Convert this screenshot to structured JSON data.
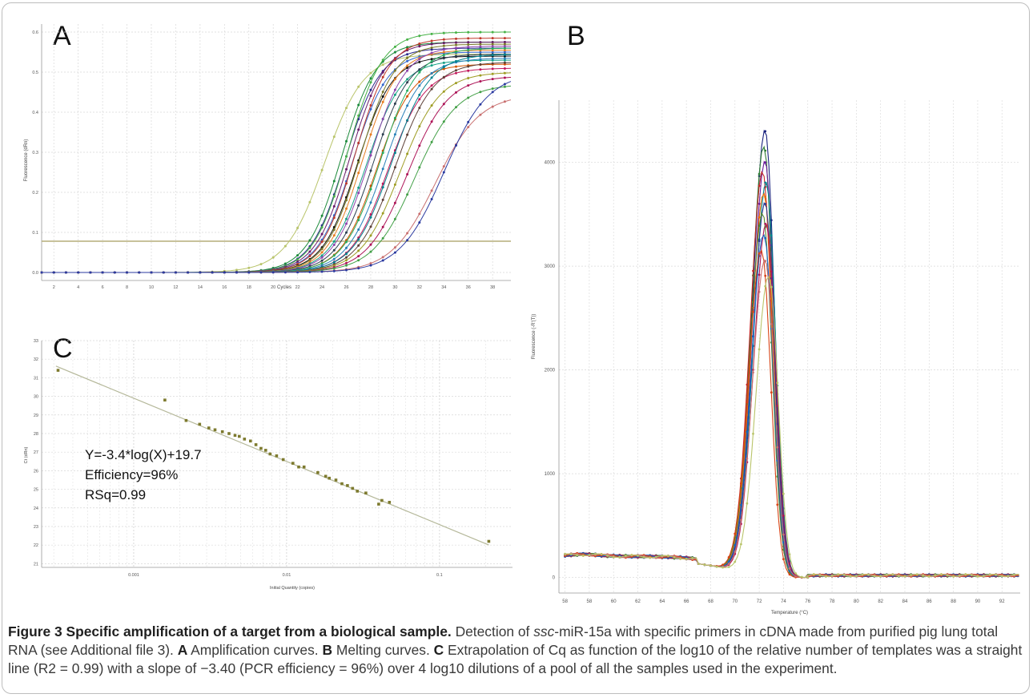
{
  "figure": {
    "panels": {
      "a": {
        "letter": "A",
        "xlabel": "Cycles",
        "ylabel": "Fluorescence (dRn)",
        "x_ticks": [
          "2",
          "4",
          "6",
          "8",
          "10",
          "12",
          "14",
          "16",
          "18",
          "20",
          "22",
          "24",
          "26",
          "28",
          "30",
          "32",
          "34",
          "36",
          "38"
        ],
        "y_ticks": [
          "0.0",
          "0.1",
          "0.2",
          "0.3",
          "0.4",
          "0.5",
          "0.6"
        ]
      },
      "b": {
        "letter": "B",
        "xlabel": "Temperature (°C)",
        "ylabel": "Fluorescence (-R'(T))",
        "x_ticks": [
          "58",
          "58",
          "60",
          "62",
          "64",
          "66",
          "68",
          "70",
          "72",
          "74",
          "76",
          "78",
          "80",
          "82",
          "84",
          "86",
          "88",
          "90",
          "92"
        ],
        "y_ticks": [
          "0",
          "1000",
          "2000",
          "3000",
          "4000"
        ]
      },
      "c": {
        "letter": "C",
        "xlabel": "Initial Quantity (copies)",
        "ylabel": "Ct (dRn)",
        "x_ticks": [
          "0.001",
          "0.01",
          "0.1"
        ],
        "y_ticks": [
          "21",
          "22",
          "23",
          "24",
          "25",
          "26",
          "27",
          "28",
          "29",
          "30",
          "31",
          "32",
          "33"
        ],
        "annotation": [
          "Y=-3.4*log(X)+19.7",
          "Efficiency=96%",
          "RSq=0.99"
        ]
      }
    },
    "caption": {
      "label": "Figure 3 Specific amplification of a target from a biological sample.",
      "text_1": " Detection of ",
      "italic": "ssc",
      "text_2": "-miR-15a with specific primers in cDNA made from purified pig lung total RNA (see Additional file 3). ",
      "a_label": "A",
      "a_text": " Amplification curves. ",
      "b_label": "B",
      "b_text": " Melting curves. ",
      "c_label": "C",
      "c_text": " Extrapolation of Cq as function of the log10 of the relative number of templates was a straight line (R2 = 0.99) with a slope of −3.40 (PCR efficiency = 96%) over 4 log10 dilutions of a pool of all the samples used in the experiment."
    }
  },
  "chart_data": [
    {
      "type": "line",
      "panel": "A",
      "xlabel": "Cycles",
      "ylabel": "Fluorescence (dRn)",
      "xlim": [
        1,
        39.5
      ],
      "ylim": [
        -0.02,
        0.62
      ],
      "threshold": 0.078,
      "series_params": [
        {
          "mid": 24.2,
          "k": 0.62,
          "top": 0.545,
          "color": "#b9c46a"
        },
        {
          "mid": 25.6,
          "k": 0.7,
          "top": 0.575,
          "color": "#1b8a3a"
        },
        {
          "mid": 25.9,
          "k": 0.7,
          "top": 0.56,
          "color": "#2a2a8c"
        },
        {
          "mid": 26.1,
          "k": 0.7,
          "top": 0.6,
          "color": "#47b247"
        },
        {
          "mid": 26.3,
          "k": 0.7,
          "top": 0.575,
          "color": "#6a1a6a"
        },
        {
          "mid": 26.5,
          "k": 0.7,
          "top": 0.55,
          "color": "#3366cc"
        },
        {
          "mid": 26.7,
          "k": 0.7,
          "top": 0.585,
          "color": "#c0392b"
        },
        {
          "mid": 26.9,
          "k": 0.7,
          "top": 0.54,
          "color": "#111111"
        },
        {
          "mid": 27.1,
          "k": 0.7,
          "top": 0.57,
          "color": "#7a7a2a"
        },
        {
          "mid": 27.3,
          "k": 0.7,
          "top": 0.555,
          "color": "#e67e22"
        },
        {
          "mid": 27.6,
          "k": 0.68,
          "top": 0.53,
          "color": "#16a085"
        },
        {
          "mid": 27.9,
          "k": 0.68,
          "top": 0.565,
          "color": "#8e44ad"
        },
        {
          "mid": 28.2,
          "k": 0.68,
          "top": 0.545,
          "color": "#2c3e50"
        },
        {
          "mid": 28.5,
          "k": 0.68,
          "top": 0.52,
          "color": "#d35400"
        },
        {
          "mid": 28.8,
          "k": 0.66,
          "top": 0.56,
          "color": "#27ae60"
        },
        {
          "mid": 29.1,
          "k": 0.66,
          "top": 0.535,
          "color": "#2980b9"
        },
        {
          "mid": 29.4,
          "k": 0.66,
          "top": 0.51,
          "color": "#c2185b"
        },
        {
          "mid": 29.7,
          "k": 0.64,
          "top": 0.545,
          "color": "#00838f"
        },
        {
          "mid": 30.0,
          "k": 0.64,
          "top": 0.525,
          "color": "#5d4037"
        },
        {
          "mid": 30.4,
          "k": 0.62,
          "top": 0.5,
          "color": "#9e9d24"
        },
        {
          "mid": 31.0,
          "k": 0.6,
          "top": 0.49,
          "color": "#ad1457"
        },
        {
          "mid": 31.6,
          "k": 0.58,
          "top": 0.47,
          "color": "#43a047"
        },
        {
          "mid": 33.3,
          "k": 0.55,
          "top": 0.445,
          "color": "#c97070"
        },
        {
          "mid": 34.0,
          "k": 0.55,
          "top": 0.5,
          "color": "#2b3aa0"
        }
      ]
    },
    {
      "type": "line",
      "panel": "B",
      "xlabel": "Temperature (°C)",
      "ylabel": "Fluorescence (-R'(T))",
      "xlim": [
        55.5,
        93.5
      ],
      "ylim": [
        -150,
        4600
      ],
      "series_params": [
        {
          "peak": 4300,
          "center": 72.5,
          "color": "#1a237e"
        },
        {
          "peak": 4150,
          "center": 72.4,
          "color": "#2e7d32"
        },
        {
          "peak": 4000,
          "center": 72.5,
          "color": "#6a1b9a"
        },
        {
          "peak": 3900,
          "center": 72.3,
          "color": "#c62828"
        },
        {
          "peak": 3800,
          "center": 72.6,
          "color": "#00838f"
        },
        {
          "peak": 3700,
          "center": 72.4,
          "color": "#ef6c00"
        },
        {
          "peak": 3600,
          "center": 72.5,
          "color": "#283593"
        },
        {
          "peak": 3500,
          "center": 72.3,
          "color": "#558b2f"
        },
        {
          "peak": 3400,
          "center": 72.6,
          "color": "#ad1457"
        },
        {
          "peak": 3300,
          "center": 72.4,
          "color": "#1565c0"
        },
        {
          "peak": 3150,
          "center": 72.2,
          "color": "#d84315"
        },
        {
          "peak": 3050,
          "center": 72.5,
          "color": "#c97070"
        },
        {
          "peak": 2900,
          "center": 72.8,
          "color": "#b9c46a"
        }
      ]
    },
    {
      "type": "scatter",
      "panel": "C",
      "xlabel": "Initial Quantity (copies)",
      "ylabel": "Ct (dRn)",
      "x_scale": "log",
      "xlim": [
        0.00025,
        0.3
      ],
      "ylim": [
        20.8,
        33
      ],
      "fit": {
        "slope": -3.4,
        "intercept": 19.7
      },
      "points": [
        [
          0.00032,
          31.4
        ],
        [
          0.0016,
          29.8
        ],
        [
          0.0022,
          28.7
        ],
        [
          0.0027,
          28.5
        ],
        [
          0.0031,
          28.3
        ],
        [
          0.0034,
          28.2
        ],
        [
          0.0038,
          28.1
        ],
        [
          0.0042,
          28.0
        ],
        [
          0.0046,
          27.9
        ],
        [
          0.0049,
          27.85
        ],
        [
          0.0053,
          27.7
        ],
        [
          0.0058,
          27.6
        ],
        [
          0.0063,
          27.4
        ],
        [
          0.0068,
          27.2
        ],
        [
          0.0073,
          27.1
        ],
        [
          0.0078,
          26.9
        ],
        [
          0.0086,
          26.8
        ],
        [
          0.0095,
          26.6
        ],
        [
          0.011,
          26.4
        ],
        [
          0.012,
          26.2
        ],
        [
          0.013,
          26.2
        ],
        [
          0.016,
          25.9
        ],
        [
          0.018,
          25.7
        ],
        [
          0.019,
          25.6
        ],
        [
          0.021,
          25.5
        ],
        [
          0.023,
          25.3
        ],
        [
          0.025,
          25.2
        ],
        [
          0.027,
          25.05
        ],
        [
          0.029,
          24.9
        ],
        [
          0.033,
          24.8
        ],
        [
          0.04,
          24.2
        ],
        [
          0.042,
          24.4
        ],
        [
          0.047,
          24.3
        ],
        [
          0.21,
          22.2
        ]
      ]
    }
  ]
}
